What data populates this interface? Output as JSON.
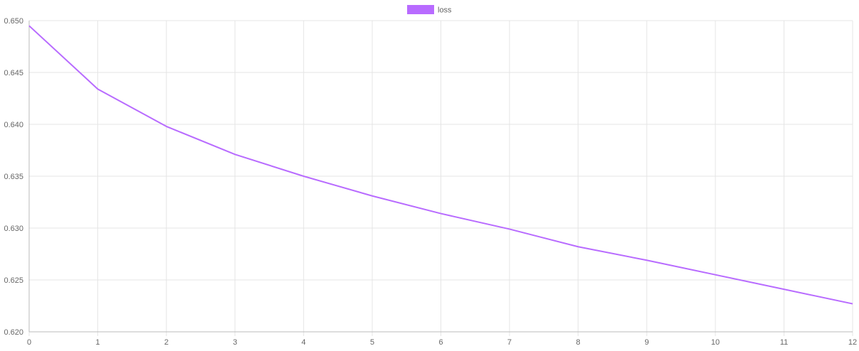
{
  "chart_data": {
    "type": "line",
    "x": [
      0,
      1,
      2,
      3,
      4,
      5,
      6,
      7,
      8,
      9,
      10,
      11,
      12
    ],
    "series": [
      {
        "name": "loss",
        "color": "#b86bff",
        "values": [
          0.6495,
          0.6434,
          0.6398,
          0.6371,
          0.635,
          0.6331,
          0.6314,
          0.6299,
          0.6282,
          0.6269,
          0.6255,
          0.6241,
          0.6227
        ]
      }
    ],
    "xlim": [
      0,
      12
    ],
    "ylim": [
      0.62,
      0.65
    ],
    "x_ticks": [
      "0",
      "1",
      "2",
      "3",
      "4",
      "5",
      "6",
      "7",
      "8",
      "9",
      "10",
      "11",
      "12"
    ],
    "y_ticks": [
      "0.620",
      "0.625",
      "0.630",
      "0.635",
      "0.640",
      "0.645",
      "0.650"
    ],
    "grid": true,
    "legend_position": "top"
  }
}
